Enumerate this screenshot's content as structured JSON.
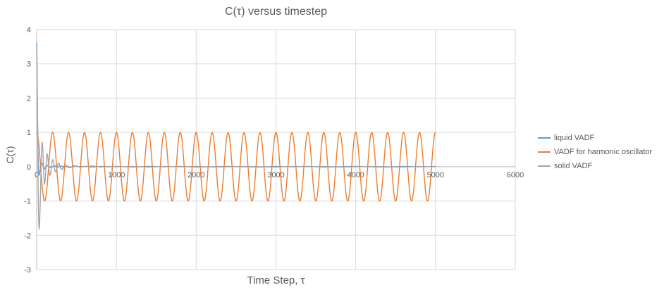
{
  "chart_data": {
    "type": "line",
    "title": "C(τ) versus timestep",
    "xlabel": "Time Step, τ",
    "ylabel": "C(τ)",
    "xlim": [
      0,
      6000
    ],
    "ylim": [
      -3,
      4
    ],
    "x_ticks": [
      0,
      1000,
      2000,
      3000,
      4000,
      5000,
      6000
    ],
    "y_ticks": [
      -3,
      -2,
      -1,
      0,
      1,
      2,
      3,
      4
    ],
    "grid": true,
    "legend_position": "right",
    "colors": {
      "gridline": "#D9D9D9",
      "axis_line": "#BFBFBF",
      "tick_label": "#595959",
      "title_text": "#595959"
    },
    "series": [
      {
        "name": "liquid VADF",
        "color": "#5B9BD5",
        "points": [
          [
            0,
            3.62
          ],
          [
            4,
            3.1
          ],
          [
            8,
            2.2
          ],
          [
            12,
            1.3
          ],
          [
            16,
            0.6
          ],
          [
            20,
            0.15
          ],
          [
            24,
            -0.12
          ],
          [
            28,
            -0.25
          ],
          [
            34,
            -0.24
          ],
          [
            40,
            -0.16
          ],
          [
            48,
            -0.05
          ],
          [
            56,
            0.05
          ],
          [
            64,
            0.1
          ],
          [
            72,
            0.09
          ],
          [
            80,
            0.04
          ],
          [
            90,
            -0.03
          ],
          [
            100,
            -0.06
          ],
          [
            112,
            -0.03
          ],
          [
            124,
            0.03
          ],
          [
            136,
            0.05
          ],
          [
            150,
            0.02
          ],
          [
            165,
            -0.02
          ],
          [
            180,
            -0.03
          ],
          [
            200,
            0.0
          ],
          [
            220,
            0.03
          ],
          [
            240,
            0.01
          ],
          [
            260,
            -0.02
          ],
          [
            280,
            0.0
          ],
          [
            300,
            0.02
          ],
          [
            340,
            -0.01
          ],
          [
            380,
            0.01
          ],
          [
            430,
            -0.02
          ],
          [
            480,
            0.02
          ],
          [
            540,
            0.0
          ],
          [
            600,
            0.01
          ],
          [
            700,
            -0.01
          ],
          [
            800,
            0.01
          ],
          [
            900,
            0.0
          ],
          [
            1000,
            0.01
          ],
          [
            1200,
            -0.01
          ],
          [
            1400,
            0.01
          ],
          [
            1600,
            0.0
          ],
          [
            1800,
            0.01
          ],
          [
            2000,
            -0.01
          ],
          [
            2200,
            0.0
          ],
          [
            2400,
            0.01
          ],
          [
            2600,
            0.0
          ],
          [
            2800,
            -0.01
          ],
          [
            3000,
            0.01
          ],
          [
            3200,
            0.0
          ],
          [
            3400,
            0.01
          ],
          [
            3600,
            -0.01
          ],
          [
            3800,
            0.0
          ],
          [
            4000,
            0.01
          ],
          [
            4200,
            0.0
          ],
          [
            4400,
            -0.01
          ],
          [
            4600,
            0.01
          ],
          [
            4800,
            0.0
          ],
          [
            5000,
            0.01
          ]
        ]
      },
      {
        "name": "VADF for harmonic oscillator",
        "color": "#ED7D31",
        "generator": {
          "function": "cos",
          "amplitude": 1,
          "period": 200,
          "x_start": 0,
          "x_end": 5000
        }
      },
      {
        "name": "solid VADF",
        "color": "#A5A5A5",
        "points": [
          [
            0,
            3.5
          ],
          [
            4,
            3.0
          ],
          [
            8,
            2.1
          ],
          [
            12,
            1.1
          ],
          [
            16,
            0.1
          ],
          [
            20,
            -0.85
          ],
          [
            24,
            -1.45
          ],
          [
            28,
            -1.75
          ],
          [
            32,
            -1.82
          ],
          [
            36,
            -1.7
          ],
          [
            40,
            -1.45
          ],
          [
            45,
            -1.05
          ],
          [
            50,
            -0.55
          ],
          [
            55,
            -0.05
          ],
          [
            60,
            0.4
          ],
          [
            65,
            0.65
          ],
          [
            70,
            0.72
          ],
          [
            75,
            0.6
          ],
          [
            80,
            0.35
          ],
          [
            85,
            0.05
          ],
          [
            90,
            -0.25
          ],
          [
            95,
            -0.45
          ],
          [
            100,
            -0.52
          ],
          [
            106,
            -0.42
          ],
          [
            112,
            -0.2
          ],
          [
            118,
            0.05
          ],
          [
            124,
            0.28
          ],
          [
            130,
            0.38
          ],
          [
            136,
            0.35
          ],
          [
            142,
            0.22
          ],
          [
            150,
            0.0
          ],
          [
            158,
            -0.18
          ],
          [
            166,
            -0.26
          ],
          [
            174,
            -0.2
          ],
          [
            182,
            -0.06
          ],
          [
            190,
            0.1
          ],
          [
            198,
            0.2
          ],
          [
            206,
            0.2
          ],
          [
            214,
            0.1
          ],
          [
            222,
            -0.03
          ],
          [
            230,
            -0.13
          ],
          [
            240,
            -0.15
          ],
          [
            250,
            -0.08
          ],
          [
            260,
            0.03
          ],
          [
            270,
            0.1
          ],
          [
            280,
            0.1
          ],
          [
            292,
            0.03
          ],
          [
            304,
            -0.05
          ],
          [
            316,
            -0.08
          ],
          [
            330,
            -0.04
          ],
          [
            344,
            0.03
          ],
          [
            360,
            0.06
          ],
          [
            380,
            0.02
          ],
          [
            400,
            -0.03
          ],
          [
            430,
            -0.02
          ],
          [
            460,
            0.03
          ],
          [
            500,
            0.02
          ],
          [
            550,
            -0.02
          ],
          [
            600,
            0.01
          ],
          [
            700,
            0.02
          ],
          [
            800,
            -0.01
          ],
          [
            900,
            0.01
          ],
          [
            1000,
            0.0
          ],
          [
            1200,
            0.01
          ],
          [
            1400,
            -0.01
          ],
          [
            1600,
            0.01
          ],
          [
            1800,
            0.0
          ],
          [
            2000,
            0.01
          ],
          [
            2200,
            -0.01
          ],
          [
            2400,
            0.0
          ],
          [
            2600,
            0.01
          ],
          [
            2800,
            0.0
          ],
          [
            3000,
            -0.01
          ],
          [
            3200,
            0.01
          ],
          [
            3400,
            0.0
          ],
          [
            3600,
            0.01
          ],
          [
            3800,
            -0.01
          ],
          [
            4000,
            0.0
          ],
          [
            4200,
            0.01
          ],
          [
            4400,
            0.0
          ],
          [
            4600,
            -0.01
          ],
          [
            4800,
            0.01
          ],
          [
            5000,
            0.0
          ]
        ]
      }
    ]
  }
}
